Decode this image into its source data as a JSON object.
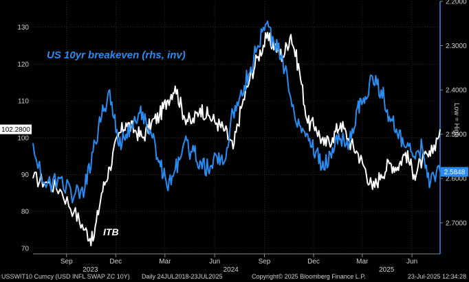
{
  "chart_data": {
    "type": "line",
    "title": "",
    "annotations": {
      "series_blue_label": "US 10yr breakeven (rhs, inv)",
      "series_white_label": "ITB",
      "right_axis_note": "Low = High"
    },
    "x_ticks": [
      {
        "label": "Sep",
        "date": "2023-09"
      },
      {
        "label": "Dec",
        "date": "2023-12"
      },
      {
        "label": "Mar",
        "date": "2024-03"
      },
      {
        "label": "Jun",
        "date": "2024-06"
      },
      {
        "label": "Sep",
        "date": "2024-09"
      },
      {
        "label": "Dec",
        "date": "2024-12"
      },
      {
        "label": "Mar",
        "date": "2025-03"
      },
      {
        "label": "Jun",
        "date": "2025-06"
      }
    ],
    "year_labels": [
      {
        "label": "2023",
        "date": "2023-10-15"
      },
      {
        "label": "2024",
        "date": "2024-07-01"
      },
      {
        "label": "2025",
        "date": "2025-04-15"
      }
    ],
    "x_range": [
      "2023-07-01",
      "2025-07-23"
    ],
    "left_axis": {
      "ticks": [
        70,
        80,
        90,
        100,
        110,
        120,
        130
      ],
      "range": [
        68.5,
        137
      ],
      "tick_labels": [
        "70",
        "80",
        "90",
        "100",
        "110",
        "120",
        "130"
      ]
    },
    "right_axis": {
      "ticks": [
        2.2,
        2.3,
        2.4,
        2.5,
        2.6,
        2.7
      ],
      "range": [
        2.2,
        2.77
      ],
      "inverted": true,
      "tick_labels": [
        "2.2000",
        "2.3000",
        "2.4000",
        "2.5000",
        "2.6000",
        "2.7000"
      ]
    },
    "last_values": {
      "itb": "102.2800",
      "breakeven": "2.5848",
      "itb_value": 102.28,
      "breakeven_value": 2.5848
    },
    "series": [
      {
        "name": "ITB",
        "axis": "left",
        "color": "#ffffff",
        "points": [
          [
            "2023-07-01",
            89
          ],
          [
            "2023-07-25",
            88
          ],
          [
            "2023-08-20",
            86
          ],
          [
            "2023-09-15",
            80
          ],
          [
            "2023-10-05",
            75
          ],
          [
            "2023-10-20",
            72
          ],
          [
            "2023-11-05",
            85
          ],
          [
            "2023-11-20",
            92
          ],
          [
            "2023-12-05",
            100
          ],
          [
            "2023-12-20",
            104
          ],
          [
            "2024-01-05",
            102
          ],
          [
            "2024-01-20",
            100
          ],
          [
            "2024-02-05",
            104
          ],
          [
            "2024-02-20",
            106
          ],
          [
            "2024-03-05",
            110
          ],
          [
            "2024-03-20",
            114
          ],
          [
            "2024-04-05",
            106
          ],
          [
            "2024-04-20",
            104
          ],
          [
            "2024-05-05",
            108
          ],
          [
            "2024-05-20",
            106
          ],
          [
            "2024-06-05",
            104
          ],
          [
            "2024-06-20",
            102
          ],
          [
            "2024-07-05",
            97
          ],
          [
            "2024-07-20",
            108
          ],
          [
            "2024-08-05",
            116
          ],
          [
            "2024-08-20",
            122
          ],
          [
            "2024-09-05",
            127
          ],
          [
            "2024-09-20",
            125
          ],
          [
            "2024-10-05",
            122
          ],
          [
            "2024-10-20",
            128
          ],
          [
            "2024-11-05",
            118
          ],
          [
            "2024-11-20",
            104
          ],
          [
            "2024-12-05",
            103
          ],
          [
            "2024-12-20",
            98
          ],
          [
            "2025-01-05",
            100
          ],
          [
            "2025-01-20",
            104
          ],
          [
            "2025-02-05",
            99
          ],
          [
            "2025-02-20",
            96
          ],
          [
            "2025-03-05",
            92
          ],
          [
            "2025-03-20",
            86
          ],
          [
            "2025-04-05",
            90
          ],
          [
            "2025-04-20",
            93
          ],
          [
            "2025-05-05",
            92
          ],
          [
            "2025-05-20",
            96
          ],
          [
            "2025-06-05",
            90
          ],
          [
            "2025-06-20",
            94
          ],
          [
            "2025-07-05",
            95
          ],
          [
            "2025-07-23",
            102.28
          ]
        ]
      },
      {
        "name": "US 10yr breakeven",
        "axis": "right",
        "color": "#2a8cf0",
        "points": [
          [
            "2023-07-01",
            2.52
          ],
          [
            "2023-07-25",
            2.62
          ],
          [
            "2023-08-20",
            2.6
          ],
          [
            "2023-09-15",
            2.64
          ],
          [
            "2023-10-05",
            2.62
          ],
          [
            "2023-10-20",
            2.54
          ],
          [
            "2023-11-05",
            2.46
          ],
          [
            "2023-11-20",
            2.4
          ],
          [
            "2023-12-05",
            2.52
          ],
          [
            "2023-12-20",
            2.5
          ],
          [
            "2024-01-05",
            2.46
          ],
          [
            "2024-01-20",
            2.45
          ],
          [
            "2024-02-05",
            2.5
          ],
          [
            "2024-02-20",
            2.56
          ],
          [
            "2024-03-05",
            2.62
          ],
          [
            "2024-03-20",
            2.58
          ],
          [
            "2024-04-05",
            2.52
          ],
          [
            "2024-04-20",
            2.54
          ],
          [
            "2024-05-05",
            2.56
          ],
          [
            "2024-05-20",
            2.58
          ],
          [
            "2024-06-05",
            2.55
          ],
          [
            "2024-06-20",
            2.56
          ],
          [
            "2024-07-05",
            2.45
          ],
          [
            "2024-07-20",
            2.4
          ],
          [
            "2024-08-05",
            2.36
          ],
          [
            "2024-08-20",
            2.3
          ],
          [
            "2024-09-05",
            2.25
          ],
          [
            "2024-09-20",
            2.3
          ],
          [
            "2024-10-05",
            2.33
          ],
          [
            "2024-10-20",
            2.42
          ],
          [
            "2024-11-05",
            2.48
          ],
          [
            "2024-11-20",
            2.5
          ],
          [
            "2024-12-05",
            2.54
          ],
          [
            "2024-12-20",
            2.58
          ],
          [
            "2025-01-05",
            2.53
          ],
          [
            "2025-01-20",
            2.51
          ],
          [
            "2025-02-05",
            2.52
          ],
          [
            "2025-02-20",
            2.44
          ],
          [
            "2025-03-05",
            2.43
          ],
          [
            "2025-03-20",
            2.37
          ],
          [
            "2025-04-05",
            2.4
          ],
          [
            "2025-04-20",
            2.46
          ],
          [
            "2025-05-05",
            2.5
          ],
          [
            "2025-05-20",
            2.53
          ],
          [
            "2025-06-05",
            2.55
          ],
          [
            "2025-06-20",
            2.53
          ],
          [
            "2025-07-05",
            2.61
          ],
          [
            "2025-07-23",
            2.5848
          ]
        ]
      }
    ],
    "grid": true,
    "grid_style": "dotted",
    "colors": {
      "background": "#000000",
      "blue": "#2a8cf0",
      "white": "#ffffff",
      "grid": "#3a3a3a",
      "text": "#cfcfcf",
      "axis_line_right": "#2a8cf0"
    }
  },
  "footer": {
    "ticker": "USSWIT10 Curncy (USD INFL SWAP ZC 10Y)",
    "range": "Daily 24JUL2018-23JUL2025",
    "copyright": "Copyright© 2025 Bloomberg Finance L.P.",
    "timestamp": "23-Jul-2025 12:34:28"
  }
}
